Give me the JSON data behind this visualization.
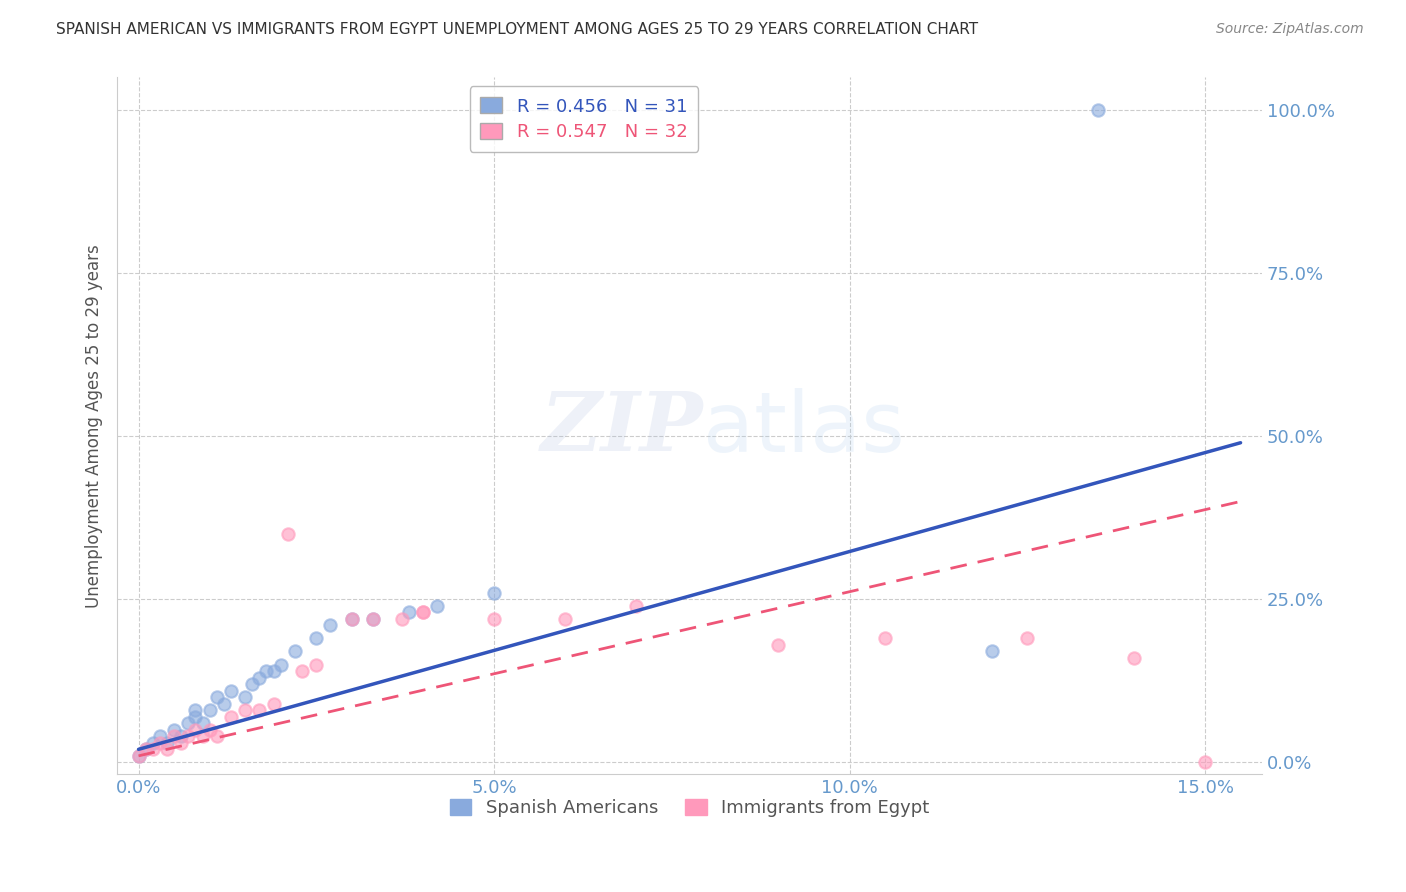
{
  "title": "SPANISH AMERICAN VS IMMIGRANTS FROM EGYPT UNEMPLOYMENT AMONG AGES 25 TO 29 YEARS CORRELATION CHART",
  "source": "Source: ZipAtlas.com",
  "xlabel_ticks": [
    0.0,
    0.05,
    0.1,
    0.15
  ],
  "xlabel_labels": [
    "0.0%",
    "5.0%",
    "10.0%",
    "15.0%"
  ],
  "ylabel_ticks": [
    0.0,
    0.25,
    0.5,
    0.75,
    1.0
  ],
  "ylabel_labels": [
    "0.0%",
    "25.0%",
    "50.0%",
    "75.0%",
    "100.0%"
  ],
  "xlim": [
    -0.003,
    0.158
  ],
  "ylim": [
    -0.018,
    1.05
  ],
  "ylabel": "Unemployment Among Ages 25 to 29 years",
  "blue_R": 0.456,
  "blue_N": 31,
  "pink_R": 0.547,
  "pink_N": 32,
  "blue_label": "Spanish Americans",
  "pink_label": "Immigrants from Egypt",
  "blue_color": "#89AADD",
  "pink_color": "#FF99BB",
  "blue_line_color": "#3355BB",
  "pink_line_color": "#EE5577",
  "blue_scatter_x": [
    0.0,
    0.001,
    0.002,
    0.003,
    0.004,
    0.005,
    0.006,
    0.007,
    0.008,
    0.008,
    0.009,
    0.01,
    0.011,
    0.012,
    0.013,
    0.015,
    0.016,
    0.017,
    0.018,
    0.019,
    0.02,
    0.022,
    0.025,
    0.027,
    0.03,
    0.033,
    0.038,
    0.042,
    0.05,
    0.12,
    0.135
  ],
  "blue_scatter_y": [
    0.01,
    0.02,
    0.03,
    0.04,
    0.03,
    0.05,
    0.04,
    0.06,
    0.07,
    0.08,
    0.06,
    0.08,
    0.1,
    0.09,
    0.11,
    0.1,
    0.12,
    0.13,
    0.14,
    0.14,
    0.15,
    0.17,
    0.19,
    0.21,
    0.22,
    0.22,
    0.23,
    0.24,
    0.26,
    0.17,
    1.0
  ],
  "pink_scatter_x": [
    0.0,
    0.001,
    0.002,
    0.003,
    0.004,
    0.005,
    0.006,
    0.007,
    0.008,
    0.009,
    0.01,
    0.011,
    0.013,
    0.015,
    0.017,
    0.019,
    0.021,
    0.023,
    0.025,
    0.03,
    0.033,
    0.037,
    0.04,
    0.04,
    0.05,
    0.06,
    0.07,
    0.09,
    0.105,
    0.125,
    0.14,
    0.15
  ],
  "pink_scatter_y": [
    0.01,
    0.02,
    0.02,
    0.03,
    0.02,
    0.04,
    0.03,
    0.04,
    0.05,
    0.04,
    0.05,
    0.04,
    0.07,
    0.08,
    0.08,
    0.09,
    0.35,
    0.14,
    0.15,
    0.22,
    0.22,
    0.22,
    0.23,
    0.23,
    0.22,
    0.22,
    0.24,
    0.18,
    0.19,
    0.19,
    0.16,
    0.0
  ],
  "blue_line_x0": 0.0,
  "blue_line_y0": 0.02,
  "blue_line_x1": 0.155,
  "blue_line_y1": 0.49,
  "pink_line_x0": 0.0,
  "pink_line_y0": 0.01,
  "pink_line_x1": 0.155,
  "pink_line_y1": 0.4,
  "watermark_zip": "ZIP",
  "watermark_atlas": "atlas",
  "background_color": "#FFFFFF",
  "grid_color": "#CCCCCC",
  "tick_color": "#6699CC"
}
